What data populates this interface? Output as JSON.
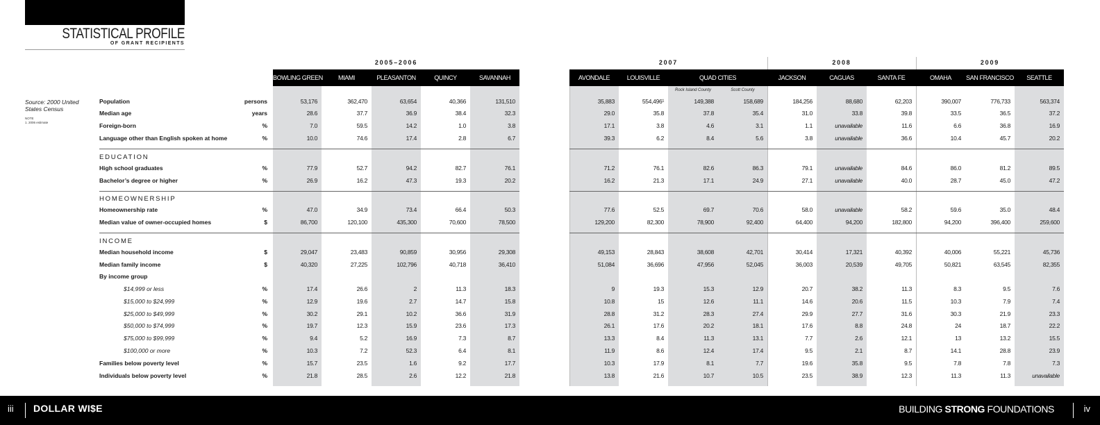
{
  "title": "STATISTICAL PROFILE",
  "subtitle": "OF GRANT RECIPIENTS",
  "source": "Source: 2000 United States Census",
  "note": "NOTE\n1. 2006 estimate",
  "years": [
    "2005–2006",
    "2007",
    "2008",
    "2009"
  ],
  "columns": [
    "BOWLING GREEN",
    "MIAMI",
    "PLEASANTON",
    "QUINCY",
    "SAVANNAH",
    "AVONDALE",
    "LOUISVILLE",
    "QUAD CITIES",
    "JACKSON",
    "CAGUAS",
    "SANTA FE",
    "OMAHA",
    "SAN FRANCISCO",
    "SEATTLE"
  ],
  "quad_cities_sub": [
    "Rock Island County",
    "Scott County"
  ],
  "sections": [
    "EDUCATION",
    "HOMEOWNERSHIP",
    "INCOME"
  ],
  "rows": [
    {
      "label": "Population",
      "unit": "persons",
      "values": [
        "53,176",
        "362,470",
        "63,654",
        "40,366",
        "131,510",
        "35,883",
        "554,496¹",
        "149,388",
        "158,689",
        "184,256",
        "88,680",
        "62,203",
        "390,007",
        "776,733",
        "563,374"
      ]
    },
    {
      "label": "Median age",
      "unit": "years",
      "values": [
        "28.6",
        "37.7",
        "36.9",
        "38.4",
        "32.3",
        "29.0",
        "35.8",
        "37.8",
        "35.4",
        "31.0",
        "33.8",
        "39.8",
        "33.5",
        "36.5",
        "37.2"
      ]
    },
    {
      "label": "Foreign-born",
      "unit": "%",
      "values": [
        "7.0",
        "59.5",
        "14.2",
        "1.0",
        "3.8",
        "17.1",
        "3.8",
        "4.6",
        "3.1",
        "1.1",
        "unavailable",
        "11.6",
        "6.6",
        "36.8",
        "16.9"
      ]
    },
    {
      "label": "Language other than English spoken at home",
      "unit": "%",
      "values": [
        "10.0",
        "74.6",
        "17.4",
        "2.8",
        "6.7",
        "39.3",
        "6.2",
        "8.4",
        "5.6",
        "3.8",
        "unavailable",
        "36.6",
        "10.4",
        "45.7",
        "20.2"
      ]
    },
    {
      "label": "High school graduates",
      "unit": "%",
      "values": [
        "77.9",
        "52.7",
        "94.2",
        "82.7",
        "76.1",
        "71.2",
        "76.1",
        "82.6",
        "86.3",
        "79.1",
        "unavailable",
        "84.6",
        "86.0",
        "81.2",
        "89.5"
      ]
    },
    {
      "label": "Bachelor’s degree or higher",
      "unit": "%",
      "values": [
        "26.9",
        "16.2",
        "47.3",
        "19.3",
        "20.2",
        "16.2",
        "21.3",
        "17.1",
        "24.9",
        "27.1",
        "unavailable",
        "40.0",
        "28.7",
        "45.0",
        "47.2"
      ]
    },
    {
      "label": "Homeownership rate",
      "unit": "%",
      "values": [
        "47.0",
        "34.9",
        "73.4",
        "66.4",
        "50.3",
        "77.6",
        "52.5",
        "69.7",
        "70.6",
        "58.0",
        "unavailable",
        "58.2",
        "59.6",
        "35.0",
        "48.4"
      ]
    },
    {
      "label": "Median value of owner-occupied homes",
      "unit": "$",
      "values": [
        "86,700",
        "120,100",
        "435,300",
        "70,600",
        "78,500",
        "129,200",
        "82,300",
        "78,900",
        "92,400",
        "64,400",
        "94,200",
        "182,800",
        "94,200",
        "396,400",
        "259,600"
      ]
    },
    {
      "label": "Median household income",
      "unit": "$",
      "values": [
        "29,047",
        "23,483",
        "90,859",
        "30,956",
        "29,308",
        "49,153",
        "28,843",
        "38,608",
        "42,701",
        "30,414",
        "17,321",
        "40,392",
        "40,006",
        "55,221",
        "45,736"
      ]
    },
    {
      "label": "Median family income",
      "unit": "$",
      "values": [
        "40,320",
        "27,225",
        "102,796",
        "40,718",
        "36,410",
        "51,084",
        "36,696",
        "47,956",
        "52,045",
        "36,003",
        "20,539",
        "49,705",
        "50,821",
        "63,545",
        "82,355"
      ]
    },
    {
      "label": "By income group",
      "unit": "",
      "values": []
    },
    {
      "label": "$14,999 or less",
      "unit": "%",
      "sub": true,
      "values": [
        "17.4",
        "26.6",
        "2",
        "11.3",
        "18.3",
        "9",
        "19.3",
        "15.3",
        "12.9",
        "20.7",
        "38.2",
        "11.3",
        "8.3",
        "9.5",
        "7.6"
      ]
    },
    {
      "label": "$15,000 to $24,999",
      "unit": "%",
      "sub": true,
      "values": [
        "12.9",
        "19.6",
        "2.7",
        "14.7",
        "15.8",
        "10.8",
        "15",
        "12.6",
        "11.1",
        "14.6",
        "20.6",
        "11.5",
        "10.3",
        "7.9",
        "7.4"
      ]
    },
    {
      "label": "$25,000 to $49,999",
      "unit": "%",
      "sub": true,
      "values": [
        "30.2",
        "29.1",
        "10.2",
        "36.6",
        "31.9",
        "28.8",
        "31.2",
        "28.3",
        "27.4",
        "29.9",
        "27.7",
        "31.6",
        "30.3",
        "21.9",
        "23.3"
      ]
    },
    {
      "label": "$50,000 to $74,999",
      "unit": "%",
      "sub": true,
      "values": [
        "19.7",
        "12.3",
        "15.9",
        "23.6",
        "17.3",
        "26.1",
        "17.6",
        "20.2",
        "18.1",
        "17.6",
        "8.8",
        "24.8",
        "24",
        "18.7",
        "22.2"
      ]
    },
    {
      "label": "$75,000 to $99,999",
      "unit": "%",
      "sub": true,
      "values": [
        "9.4",
        "5.2",
        "16.9",
        "7.3",
        "8.7",
        "13.3",
        "8.4",
        "11.3",
        "13.1",
        "7.7",
        "2.6",
        "12.1",
        "13",
        "13.2",
        "15.5"
      ]
    },
    {
      "label": "$100,000 or more",
      "unit": "%",
      "sub": true,
      "values": [
        "10.3",
        "7.2",
        "52.3",
        "6.4",
        "8.1",
        "11.9",
        "8.6",
        "12.4",
        "17.4",
        "9.5",
        "2.1",
        "8.7",
        "14.1",
        "28.8",
        "23.9"
      ]
    },
    {
      "label": "Families below poverty level",
      "unit": "%",
      "values": [
        "15.7",
        "23.5",
        "1.6",
        "9.2",
        "17.7",
        "10.3",
        "17.9",
        "8.1",
        "7.7",
        "19.6",
        "35.8",
        "9.5",
        "7.8",
        "7.8",
        "7.3"
      ]
    },
    {
      "label": "Individuals below poverty level",
      "unit": "%",
      "values": [
        "21.8",
        "28.5",
        "2.6",
        "12.2",
        "21.8",
        "13.8",
        "21.6",
        "10.7",
        "10.5",
        "23.5",
        "38.9",
        "12.3",
        "11.3",
        "11.3",
        "unavailable"
      ]
    }
  ],
  "footer": {
    "page_left": "iii",
    "brand": "DOLLAR WI$E",
    "tagline_pre": "BUILDING ",
    "tagline_bold": "STRONG",
    "tagline_post": " FOUNDATIONS",
    "page_right": "iv"
  }
}
